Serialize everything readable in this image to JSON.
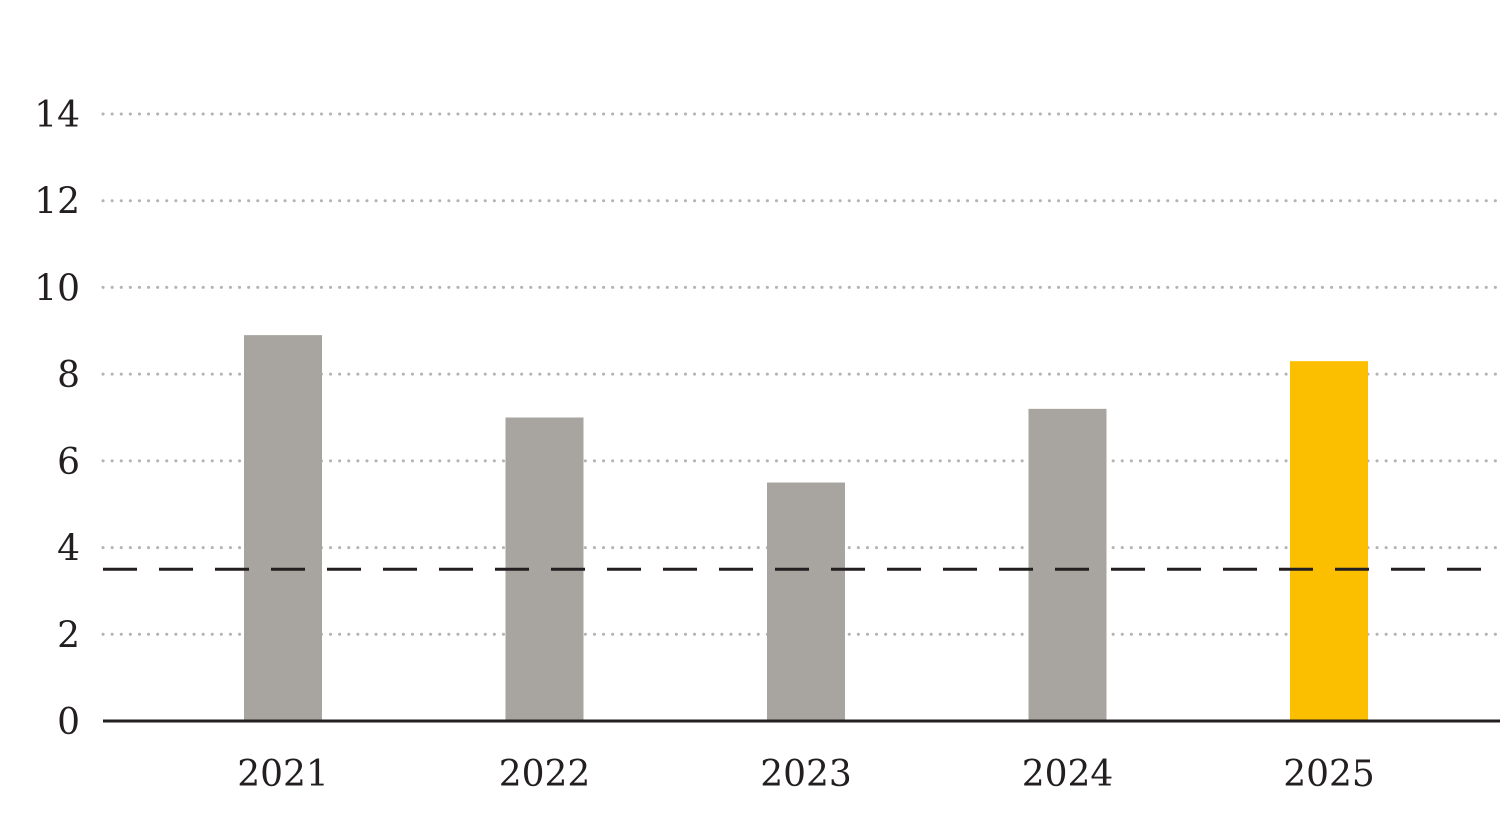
{
  "chart_data": {
    "type": "bar",
    "categories": [
      "2021",
      "2022",
      "2023",
      "2024",
      "2025"
    ],
    "values": [
      8.9,
      7.0,
      5.5,
      7.2,
      8.3
    ],
    "ylim": [
      0,
      14
    ],
    "yticks": [
      0,
      2,
      4,
      6,
      8,
      10,
      12,
      14
    ],
    "reference_line": 3.5,
    "grid": true,
    "colors": {
      "default_bar": "#a8a5a0",
      "highlight_bar": "#fcbf00",
      "axis": "#231f20",
      "grid": "#b3b3b3",
      "reference": "#231f20"
    },
    "highlight_category": "2025"
  }
}
